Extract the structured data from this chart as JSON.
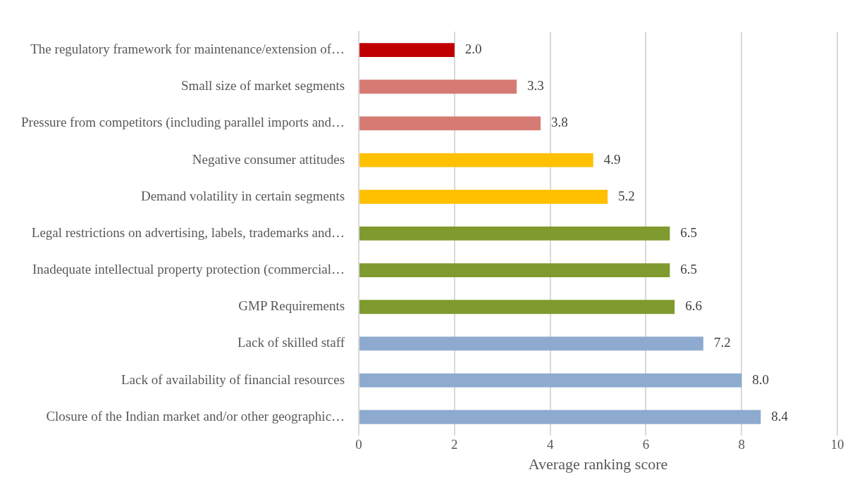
{
  "chart_data": {
    "type": "bar",
    "orientation": "horizontal",
    "xlabel": "Average ranking score",
    "categories": [
      "The regulatory framework for maintenance/extension of…",
      "Small size of market segments",
      "Pressure from competitors (including parallel imports and…",
      "Negative consumer attitudes",
      "Demand volatility in certain segments",
      "Legal restrictions on advertising, labels, trademarks and…",
      "Inadequate intellectual property protection (commercial…",
      "GMP Requirements",
      "Lack of skilled staff",
      "Lack of availability of financial resources",
      "Closure of the Indian market and/or other geographic…"
    ],
    "values": [
      2.0,
      3.3,
      3.8,
      4.9,
      5.2,
      6.5,
      6.5,
      6.6,
      7.2,
      8.0,
      8.4
    ],
    "value_labels": [
      "2.0",
      "3.3",
      "3.8",
      "4.9",
      "5.2",
      "6.5",
      "6.5",
      "6.6",
      "7.2",
      "8.0",
      "8.4"
    ],
    "colors": [
      "#c00000",
      "#d67b74",
      "#d67b74",
      "#ffc000",
      "#ffc000",
      "#7f9a2e",
      "#7f9a2e",
      "#7f9a2e",
      "#8eaacf",
      "#8eaacf",
      "#8eaacf"
    ],
    "xlim": [
      0,
      10
    ],
    "xticks": [
      0,
      2,
      4,
      6,
      8,
      10
    ],
    "grid": "x",
    "legend": false
  }
}
